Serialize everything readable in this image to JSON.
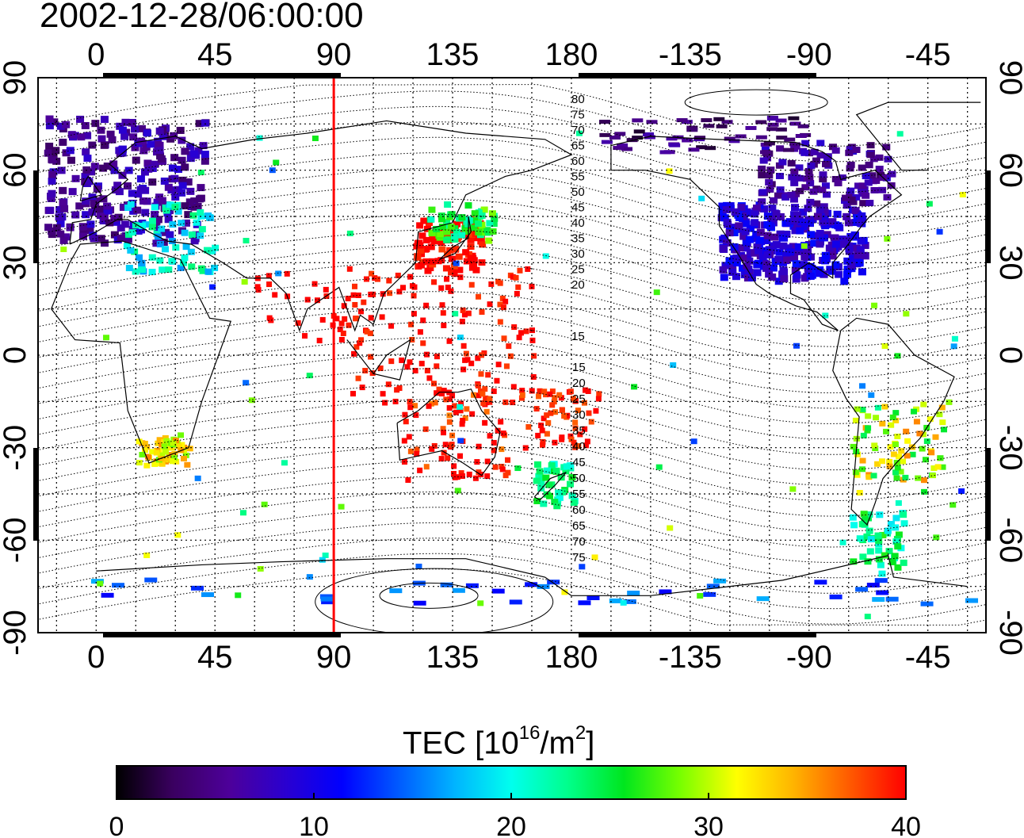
{
  "title": "2002-12-28/06:00:00",
  "map": {
    "projection": "equirectangular",
    "lon_start": -22,
    "lon_end": 337,
    "lat_min": -90,
    "lat_max": 90,
    "lon_ticks": [
      0,
      45,
      90,
      135,
      180,
      -135,
      -90,
      -45
    ],
    "lat_ticks": [
      90,
      60,
      30,
      0,
      -30,
      -60,
      -90
    ],
    "gridlines": "dotted, every 15 degrees",
    "marker_meridian": 90,
    "marker_color": "#ff0000"
  },
  "contours": {
    "north_labels": [
      "80",
      "75",
      "70",
      "65",
      "60",
      "55",
      "50",
      "45",
      "40",
      "35",
      "30",
      "25",
      "20",
      "15"
    ],
    "south_labels": [
      "15",
      "20",
      "25",
      "30",
      "35",
      "40",
      "45",
      "50",
      "55",
      "60",
      "65",
      "70",
      "75"
    ]
  },
  "colorbar": {
    "label_prefix": "TEC  [10",
    "label_exp": "16",
    "label_mid": "/m",
    "label_exp2": "2",
    "label_suffix": "]",
    "ticks": [
      "0",
      "10",
      "20",
      "30",
      "40"
    ],
    "min": 0,
    "max": 40,
    "colors": [
      "#000000",
      "#3a0060",
      "#4d009a",
      "#2a00d0",
      "#0000ff",
      "#005aff",
      "#00b4ff",
      "#00ffee",
      "#00ff8c",
      "#00e61e",
      "#78ff00",
      "#ffff00",
      "#ffb400",
      "#ff5a00",
      "#ff0000"
    ]
  },
  "tec_regions": [
    {
      "name": "europe",
      "v": 6
    },
    {
      "name": "north-america",
      "v": 9
    },
    {
      "name": "east-asia",
      "v": 40
    },
    {
      "name": "southeast-asia",
      "v": 40
    },
    {
      "name": "australia",
      "v": 40
    },
    {
      "name": "southern-africa",
      "v": 32
    },
    {
      "name": "south-america",
      "v": 30
    },
    {
      "name": "antarctic",
      "v": 14
    }
  ]
}
